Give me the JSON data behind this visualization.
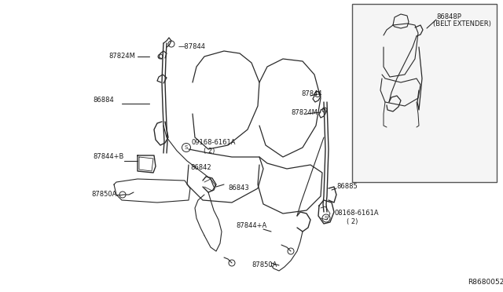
{
  "bg_color": "#ffffff",
  "line_color": "#2a2a2a",
  "label_color": "#1a1a1a",
  "fig_width": 6.4,
  "fig_height": 3.72,
  "dpi": 100,
  "ref_number": "R8680052",
  "inset_label_1": "86848P",
  "inset_label_2": "(BELT EXTENDER)"
}
